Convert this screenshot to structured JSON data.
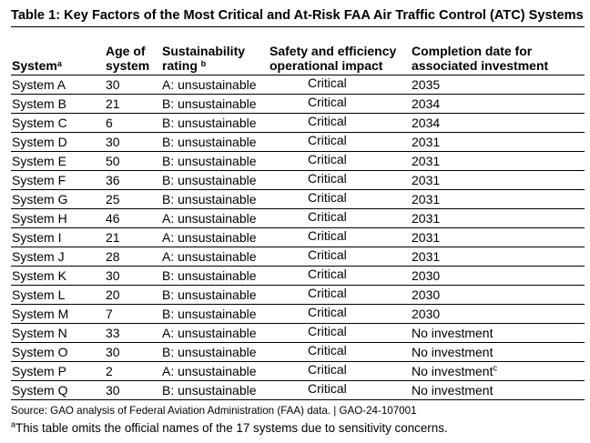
{
  "title": "Table 1: Key Factors of the Most Critical and At-Risk FAA Air Traffic Control (ATC) Systems",
  "headers": {
    "system": "System",
    "system_sup": "a",
    "age_line1": "Age of",
    "age_line2": "system",
    "sustainability_line1": "Sustainability",
    "sustainability_line2": "rating",
    "sustainability_sup": "b",
    "impact_line1": "Safety and efficiency",
    "impact_line2": "operational impact",
    "completion_line1": "Completion date for",
    "completion_line2": "associated investment"
  },
  "rows": [
    {
      "system": "System A",
      "age": "30",
      "rating": "A: unsustainable",
      "impact": "Critical",
      "completion": "2035",
      "completion_sup": ""
    },
    {
      "system": "System B",
      "age": "21",
      "rating": "B: unsustainable",
      "impact": "Critical",
      "completion": "2034",
      "completion_sup": ""
    },
    {
      "system": "System C",
      "age": "6",
      "rating": "B: unsustainable",
      "impact": "Critical",
      "completion": "2034",
      "completion_sup": ""
    },
    {
      "system": "System D",
      "age": "30",
      "rating": "B: unsustainable",
      "impact": "Critical",
      "completion": "2031",
      "completion_sup": ""
    },
    {
      "system": "System E",
      "age": "50",
      "rating": "B: unsustainable",
      "impact": "Critical",
      "completion": "2031",
      "completion_sup": ""
    },
    {
      "system": "System F",
      "age": "36",
      "rating": "B: unsustainable",
      "impact": "Critical",
      "completion": "2031",
      "completion_sup": ""
    },
    {
      "system": "System G",
      "age": "25",
      "rating": "B: unsustainable",
      "impact": "Critical",
      "completion": "2031",
      "completion_sup": ""
    },
    {
      "system": "System H",
      "age": "46",
      "rating": "A: unsustainable",
      "impact": "Critical",
      "completion": "2031",
      "completion_sup": ""
    },
    {
      "system": "System I",
      "age": "21",
      "rating": "A: unsustainable",
      "impact": "Critical",
      "completion": "2031",
      "completion_sup": ""
    },
    {
      "system": "System J",
      "age": "28",
      "rating": "A: unsustainable",
      "impact": "Critical",
      "completion": "2031",
      "completion_sup": ""
    },
    {
      "system": "System K",
      "age": "30",
      "rating": "B: unsustainable",
      "impact": "Critical",
      "completion": "2030",
      "completion_sup": ""
    },
    {
      "system": "System L",
      "age": "20",
      "rating": "B: unsustainable",
      "impact": "Critical",
      "completion": "2030",
      "completion_sup": ""
    },
    {
      "system": "System M",
      "age": "7",
      "rating": "B: unsustainable",
      "impact": "Critical",
      "completion": "2030",
      "completion_sup": ""
    },
    {
      "system": "System N",
      "age": "33",
      "rating": "A: unsustainable",
      "impact": "Critical",
      "completion": "No investment",
      "completion_sup": ""
    },
    {
      "system": "System O",
      "age": "30",
      "rating": "B: unsustainable",
      "impact": "Critical",
      "completion": "No investment",
      "completion_sup": ""
    },
    {
      "system": "System P",
      "age": "2",
      "rating": "A: unsustainable",
      "impact": "Critical",
      "completion": "No investment",
      "completion_sup": "c"
    },
    {
      "system": "System Q",
      "age": "30",
      "rating": "B: unsustainable",
      "impact": "Critical",
      "completion": "No investment",
      "completion_sup": ""
    }
  ],
  "source": "Source: GAO analysis of Federal Aviation Administration (FAA) data.  |  GAO-24-107001",
  "footnote_marker": "a",
  "footnote_text": "This table omits the official names of the 17 systems due to sensitivity concerns."
}
